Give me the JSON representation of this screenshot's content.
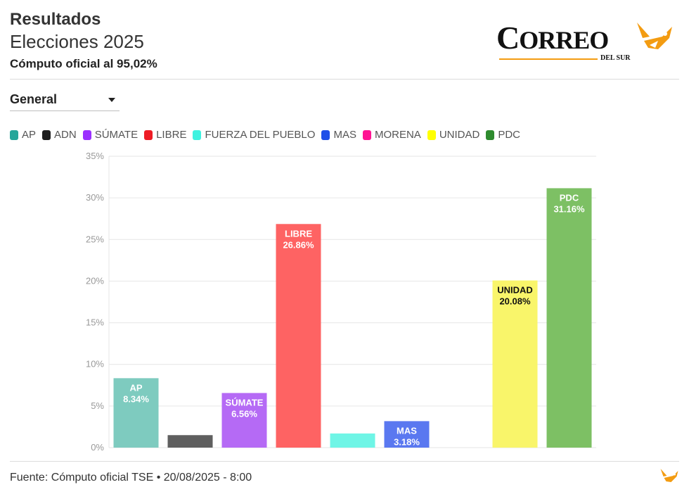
{
  "header": {
    "title": "Resultados",
    "subtitle": "Elecciones 2025",
    "note": "Cómputo oficial al 95,02%"
  },
  "logo": {
    "text": "CORREO",
    "small": "DEL SUR",
    "accent": "#f39c12"
  },
  "dropdown": {
    "selected": "General"
  },
  "footer": {
    "source": "Fuente: Cómputo oficial TSE • 20/08/2025 - 8:00"
  },
  "chart_data": {
    "type": "bar",
    "categories": [
      "AP",
      "ADN",
      "SÚMATE",
      "LIBRE",
      "FUERZA DEL PUEBLO",
      "MAS",
      "MORENA",
      "UNIDAD",
      "PDC"
    ],
    "values": [
      8.34,
      1.5,
      6.56,
      26.86,
      1.7,
      3.18,
      0,
      20.08,
      31.16
    ],
    "colors": [
      "#7ecbbf",
      "#5f5f5f",
      "#b56af5",
      "#fe6363",
      "#6ff5e6",
      "#5a78f0",
      "#ee2fb8",
      "#f9f56a",
      "#7dc064"
    ],
    "legend_colors": [
      "#26a69a",
      "#1e1e1e",
      "#9b30ff",
      "#ee1c25",
      "#3ff2e0",
      "#1f4fe8",
      "#ff1493",
      "#ffff00",
      "#2e8b2e"
    ],
    "data_labels": [
      {
        "index": 0,
        "name": "AP",
        "value": "8.34%",
        "text_color": "#ffffff"
      },
      {
        "index": 2,
        "name": "SÚMATE",
        "value": "6.56%",
        "text_color": "#ffffff"
      },
      {
        "index": 3,
        "name": "LIBRE",
        "value": "26.86%",
        "text_color": "#ffffff"
      },
      {
        "index": 5,
        "name": "MAS",
        "value": "3.18%",
        "text_color": "#ffffff"
      },
      {
        "index": 7,
        "name": "UNIDAD",
        "value": "20.08%",
        "text_color": "#111111"
      },
      {
        "index": 8,
        "name": "PDC",
        "value": "31.16%",
        "text_color": "#ffffff"
      }
    ],
    "y_ticks": [
      "0%",
      "5%",
      "10%",
      "15%",
      "20%",
      "25%",
      "30%",
      "35%"
    ],
    "ylim": [
      0,
      35
    ],
    "grid": true,
    "legend_position": "top-left"
  }
}
